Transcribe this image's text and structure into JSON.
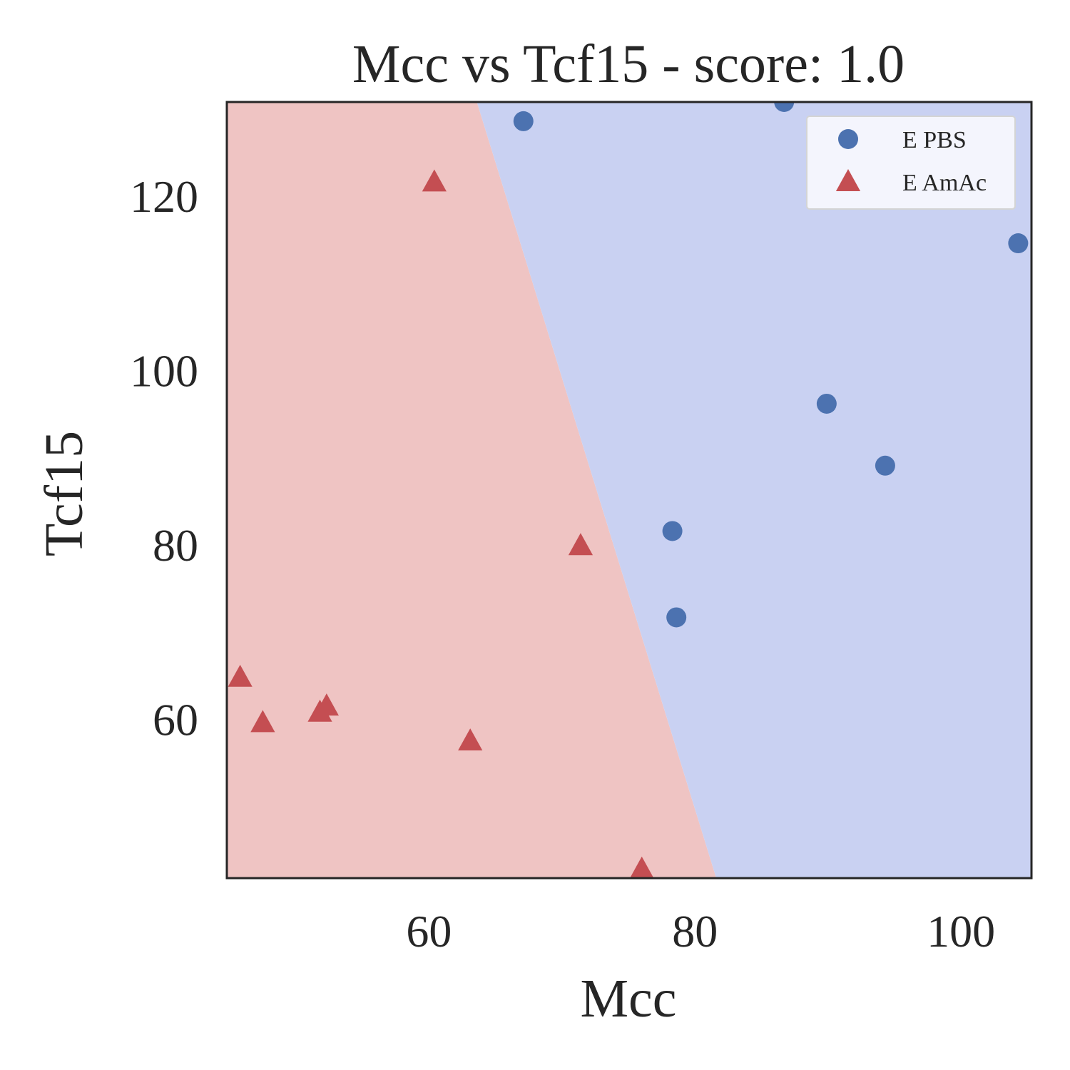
{
  "chart_data": {
    "type": "scatter",
    "title": "Mcc vs Tcf15 - score: 1.0",
    "xlabel": "Mcc",
    "ylabel": "Tcf15",
    "xlim": [
      44.8,
      105.3
    ],
    "ylim": [
      41.8,
      130.8
    ],
    "xticks": [
      60,
      80,
      100
    ],
    "yticks": [
      60,
      80,
      100,
      120
    ],
    "legend_position": "top-right",
    "grid": false,
    "decision_regions": [
      {
        "class": "E AmAc",
        "color": "#efc4c3",
        "polygon": [
          [
            44.8,
            130.8
          ],
          [
            63.6,
            130.8
          ],
          [
            81.6,
            41.8
          ],
          [
            44.8,
            41.8
          ]
        ]
      },
      {
        "class": "E PBS",
        "color": "#c9d1f2",
        "polygon": [
          [
            63.6,
            130.8
          ],
          [
            105.3,
            130.8
          ],
          [
            105.3,
            41.8
          ],
          [
            81.6,
            41.8
          ]
        ]
      }
    ],
    "series": [
      {
        "name": "E PBS",
        "marker": "circle",
        "color": "#4c72b0",
        "points": [
          [
            67.1,
            128.6
          ],
          [
            86.7,
            130.8
          ],
          [
            89.9,
            96.2
          ],
          [
            94.3,
            89.1
          ],
          [
            104.3,
            114.6
          ],
          [
            78.3,
            81.6
          ],
          [
            78.6,
            71.7
          ]
        ]
      },
      {
        "name": "E AmAc",
        "marker": "triangle",
        "color": "#c44e52",
        "points": [
          [
            60.4,
            121.6
          ],
          [
            71.4,
            79.9
          ],
          [
            45.8,
            64.8
          ],
          [
            47.5,
            59.6
          ],
          [
            51.8,
            60.8
          ],
          [
            52.3,
            61.5
          ],
          [
            63.1,
            57.5
          ],
          [
            76.0,
            42.8
          ]
        ]
      }
    ]
  }
}
